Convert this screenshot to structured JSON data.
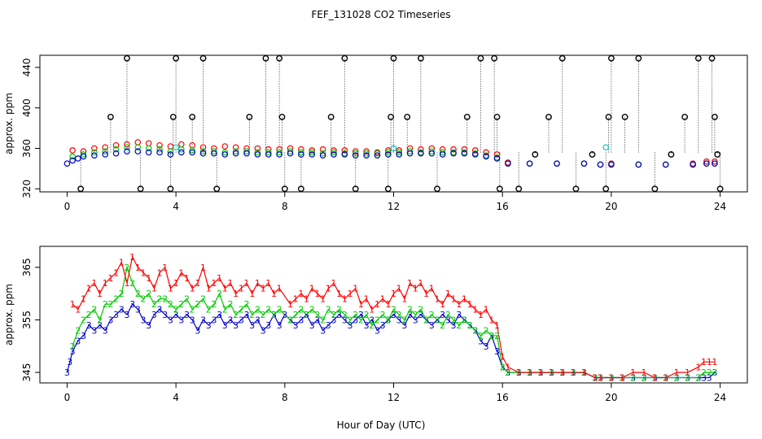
{
  "title": "FEF_131028  CO2 Timeseries",
  "xlabel": "Hour of Day (UTC)",
  "colors": {
    "series1": "#ff0000",
    "series2": "#00cc00",
    "series3": "#0000cc",
    "flag": "#00cccc",
    "axis": "#000000"
  },
  "chart_data": [
    {
      "type": "scatter",
      "title": "FEF_131028  CO2 Timeseries",
      "ylabel": "approx. ppm",
      "xlim": [
        -1,
        25
      ],
      "ylim": [
        317,
        452
      ],
      "xticks": [
        0,
        4,
        8,
        12,
        16,
        20,
        24
      ],
      "yticks": [
        320,
        360,
        400,
        440
      ],
      "grid": false,
      "series": [
        {
          "color": "#ff0000",
          "x": [
            0.2,
            0.6,
            1.0,
            1.4,
            1.8,
            2.2,
            2.6,
            3.0,
            3.4,
            3.8,
            4.2,
            4.6,
            5.0,
            5.4,
            5.8,
            6.2,
            6.6,
            7.0,
            7.4,
            7.8,
            8.2,
            8.6,
            9.0,
            9.4,
            9.8,
            10.2,
            10.6,
            11.0,
            11.4,
            11.8,
            12.2,
            12.6,
            13.0,
            13.4,
            13.8,
            14.2,
            14.6,
            15.0,
            15.4,
            15.8,
            16.2,
            17.0,
            18.0,
            19.0,
            19.6,
            20.0,
            21.0,
            22.0,
            23.0,
            23.5,
            23.8
          ],
          "y": [
            358,
            357,
            360,
            361,
            363,
            364,
            366,
            365,
            363,
            362,
            364,
            363,
            361,
            360,
            362,
            361,
            360,
            360,
            359,
            359,
            360,
            359,
            358,
            359,
            358,
            358,
            357,
            357,
            356,
            358,
            358,
            360,
            359,
            360,
            359,
            359,
            359,
            358,
            356,
            354,
            346,
            345,
            345,
            345,
            344,
            345,
            344,
            344,
            345,
            347,
            347
          ]
        },
        {
          "color": "#00cc00",
          "x": [
            0.2,
            0.6,
            1.0,
            1.4,
            1.8,
            2.2,
            2.6,
            3.0,
            3.4,
            3.8,
            4.2,
            4.6,
            5.0,
            5.4,
            5.8,
            6.2,
            6.6,
            7.0,
            7.4,
            7.8,
            8.2,
            8.6,
            9.0,
            9.4,
            9.8,
            10.2,
            10.6,
            11.0,
            11.4,
            11.8,
            12.2,
            12.6,
            13.0,
            13.4,
            13.8,
            14.2,
            14.6,
            15.0,
            15.4,
            15.8,
            16.2,
            17.0,
            18.0,
            19.0,
            19.6,
            20.0,
            21.0,
            22.0,
            23.0,
            23.5,
            23.8
          ],
          "y": [
            352,
            354,
            356,
            357,
            359,
            361,
            361,
            360,
            359,
            357,
            359,
            358,
            357,
            357,
            356,
            357,
            357,
            356,
            356,
            356,
            357,
            356,
            356,
            355,
            356,
            355,
            355,
            355,
            355,
            356,
            356,
            357,
            356,
            357,
            356,
            356,
            356,
            355,
            353,
            351,
            345,
            345,
            345,
            345,
            344,
            344,
            344,
            344,
            344,
            345,
            345
          ]
        },
        {
          "color": "#0000cc",
          "x": [
            0.0,
            0.2,
            0.4,
            0.6,
            1.0,
            1.4,
            1.8,
            2.2,
            2.6,
            3.0,
            3.4,
            3.8,
            4.2,
            4.6,
            5.0,
            5.4,
            5.8,
            6.2,
            6.6,
            7.0,
            7.4,
            7.8,
            8.2,
            8.6,
            9.0,
            9.4,
            9.8,
            10.2,
            10.6,
            11.0,
            11.4,
            11.8,
            12.2,
            12.6,
            13.0,
            13.4,
            13.8,
            14.2,
            14.6,
            15.0,
            15.4,
            15.8,
            16.2,
            17.0,
            18.0,
            19.0,
            19.6,
            20.0,
            21.0,
            22.0,
            23.0,
            23.5,
            23.8
          ],
          "y": [
            345,
            348,
            350,
            352,
            353,
            354,
            355,
            357,
            357,
            356,
            356,
            354,
            356,
            356,
            355,
            355,
            354,
            355,
            355,
            354,
            354,
            354,
            355,
            354,
            354,
            353,
            354,
            354,
            353,
            353,
            353,
            354,
            354,
            355,
            355,
            355,
            354,
            355,
            355,
            354,
            352,
            350,
            345,
            345,
            345,
            345,
            344,
            344,
            344,
            344,
            344,
            345,
            345
          ]
        }
      ],
      "flag_points": {
        "color": "#00cccc",
        "x": [
          4.0,
          12.0,
          19.8
        ],
        "y": [
          361,
          360,
          361
        ]
      },
      "outliers": {
        "color": "#000000",
        "x": [
          0.5,
          1.6,
          2.2,
          2.7,
          3.8,
          3.9,
          4.0,
          4.6,
          5.0,
          5.5,
          6.7,
          7.3,
          7.8,
          7.9,
          8.0,
          8.6,
          9.7,
          10.2,
          10.6,
          11.8,
          11.9,
          12.0,
          12.5,
          13.0,
          13.6,
          14.7,
          15.2,
          15.7,
          15.8,
          15.9,
          16.6,
          17.2,
          17.7,
          18.2,
          18.7,
          19.3,
          19.8,
          19.9,
          20.0,
          20.5,
          21.0,
          21.6,
          22.2,
          22.7,
          23.2,
          23.7,
          23.8,
          23.9,
          24.0
        ],
        "y": [
          320,
          391,
          449,
          320,
          320,
          391,
          449,
          391,
          449,
          320,
          391,
          449,
          449,
          391,
          320,
          320,
          391,
          449,
          320,
          320,
          391,
          449,
          391,
          449,
          320,
          391,
          449,
          449,
          391,
          320,
          320,
          354,
          391,
          449,
          320,
          354,
          320,
          391,
          449,
          391,
          449,
          320,
          354,
          391,
          449,
          449,
          391,
          354,
          320
        ]
      }
    },
    {
      "type": "scatter",
      "ylabel": "approx. ppm",
      "xlim": [
        -1,
        25
      ],
      "ylim": [
        343,
        369
      ],
      "xticks": [
        0,
        4,
        8,
        12,
        16,
        20,
        24
      ],
      "yticks": [
        345,
        355,
        365
      ],
      "grid": false,
      "markers": [
        "1",
        "2",
        "3"
      ],
      "series": [
        {
          "color": "#ff0000",
          "marker": "1",
          "x": [
            0.2,
            0.4,
            0.6,
            0.8,
            1.0,
            1.2,
            1.4,
            1.6,
            1.8,
            2.0,
            2.2,
            2.4,
            2.6,
            2.8,
            3.0,
            3.2,
            3.4,
            3.6,
            3.8,
            4.0,
            4.2,
            4.4,
            4.6,
            4.8,
            5.0,
            5.2,
            5.4,
            5.6,
            5.8,
            6.0,
            6.2,
            6.4,
            6.6,
            6.8,
            7.0,
            7.2,
            7.4,
            7.6,
            7.8,
            8.2,
            8.4,
            8.6,
            8.8,
            9.0,
            9.2,
            9.4,
            9.6,
            9.8,
            10.0,
            10.2,
            10.4,
            10.6,
            10.8,
            11.0,
            11.2,
            11.4,
            11.6,
            11.8,
            12.0,
            12.2,
            12.4,
            12.6,
            12.8,
            13.0,
            13.2,
            13.4,
            13.6,
            13.8,
            14.0,
            14.2,
            14.4,
            14.6,
            14.8,
            15.0,
            15.2,
            15.4,
            15.6,
            15.8,
            16.0,
            16.2,
            16.6,
            17.0,
            17.4,
            17.8,
            18.2,
            18.6,
            19.0,
            19.4,
            19.6,
            20.0,
            20.4,
            20.8,
            21.2,
            21.6,
            22.0,
            22.4,
            22.8,
            23.2,
            23.4,
            23.6,
            23.8
          ],
          "y": [
            358,
            357,
            359,
            361,
            362,
            360,
            362,
            363,
            364,
            366,
            362,
            367,
            365,
            364,
            363,
            361,
            364,
            365,
            361,
            362,
            364,
            363,
            361,
            362,
            365,
            361,
            362,
            363,
            361,
            362,
            360,
            361,
            362,
            360,
            362,
            361,
            362,
            360,
            361,
            358,
            359,
            360,
            359,
            361,
            360,
            359,
            361,
            362,
            360,
            359,
            360,
            361,
            358,
            359,
            357,
            358,
            359,
            358,
            360,
            361,
            359,
            362,
            361,
            362,
            360,
            361,
            359,
            358,
            360,
            359,
            358,
            359,
            358,
            357,
            356,
            357,
            355,
            354,
            348,
            346,
            345,
            345,
            345,
            345,
            345,
            345,
            345,
            344,
            344,
            344,
            344,
            345,
            345,
            344,
            344,
            345,
            345,
            346,
            347,
            347,
            347
          ]
        },
        {
          "color": "#00cc00",
          "marker": "2",
          "x": [
            0.2,
            0.4,
            0.6,
            0.8,
            1.0,
            1.2,
            1.4,
            1.6,
            1.8,
            2.0,
            2.2,
            2.4,
            2.6,
            2.8,
            3.0,
            3.2,
            3.4,
            3.6,
            3.8,
            4.0,
            4.2,
            4.4,
            4.6,
            4.8,
            5.0,
            5.2,
            5.4,
            5.6,
            5.8,
            6.0,
            6.2,
            6.4,
            6.6,
            6.8,
            7.0,
            7.2,
            7.4,
            7.6,
            7.8,
            8.2,
            8.4,
            8.6,
            8.8,
            9.0,
            9.2,
            9.4,
            9.6,
            9.8,
            10.0,
            10.2,
            10.4,
            10.6,
            10.8,
            11.0,
            11.2,
            11.4,
            11.6,
            11.8,
            12.0,
            12.2,
            12.4,
            12.6,
            12.8,
            13.0,
            13.2,
            13.4,
            13.6,
            13.8,
            14.0,
            14.2,
            14.4,
            14.6,
            14.8,
            15.0,
            15.2,
            15.4,
            15.6,
            15.8,
            16.0,
            16.2,
            16.6,
            17.0,
            17.4,
            17.8,
            18.2,
            18.6,
            19.0,
            19.4,
            19.6,
            20.0,
            20.4,
            20.8,
            21.2,
            21.6,
            22.0,
            22.4,
            22.8,
            23.2,
            23.4,
            23.6,
            23.8
          ],
          "y": [
            350,
            353,
            355,
            356,
            357,
            355,
            358,
            358,
            359,
            360,
            365,
            362,
            360,
            359,
            360,
            358,
            359,
            359,
            358,
            357,
            358,
            359,
            357,
            358,
            359,
            357,
            358,
            360,
            357,
            358,
            356,
            357,
            358,
            356,
            357,
            356,
            357,
            356,
            357,
            355,
            356,
            357,
            356,
            357,
            356,
            355,
            357,
            356,
            357,
            356,
            355,
            356,
            355,
            356,
            354,
            355,
            356,
            355,
            357,
            356,
            355,
            357,
            356,
            357,
            355,
            356,
            355,
            354,
            356,
            355,
            354,
            355,
            354,
            353,
            352,
            353,
            352,
            352,
            346,
            345,
            345,
            345,
            345,
            345,
            345,
            345,
            345,
            344,
            344,
            344,
            344,
            344,
            344,
            344,
            344,
            344,
            344,
            344,
            345,
            345,
            345
          ]
        },
        {
          "color": "#0000cc",
          "marker": "3",
          "x": [
            0.0,
            0.1,
            0.2,
            0.4,
            0.6,
            0.8,
            1.0,
            1.2,
            1.4,
            1.6,
            1.8,
            2.0,
            2.2,
            2.4,
            2.6,
            2.8,
            3.0,
            3.2,
            3.4,
            3.6,
            3.8,
            4.0,
            4.2,
            4.4,
            4.6,
            4.8,
            5.0,
            5.2,
            5.4,
            5.6,
            5.8,
            6.0,
            6.2,
            6.4,
            6.6,
            6.8,
            7.0,
            7.2,
            7.4,
            7.6,
            7.8,
            8.0,
            8.2,
            8.4,
            8.6,
            8.8,
            9.0,
            9.2,
            9.4,
            9.6,
            9.8,
            10.0,
            10.2,
            10.4,
            10.6,
            10.8,
            11.0,
            11.2,
            11.4,
            11.6,
            11.8,
            12.0,
            12.2,
            12.4,
            12.6,
            12.8,
            13.0,
            13.2,
            13.4,
            13.6,
            13.8,
            14.0,
            14.2,
            14.4,
            14.6,
            14.8,
            15.0,
            15.2,
            15.4,
            15.6,
            15.8,
            16.0,
            16.2,
            16.6,
            17.0,
            17.4,
            17.8,
            18.2,
            18.6,
            19.0,
            19.4,
            19.6,
            20.0,
            20.4,
            20.8,
            21.2,
            21.6,
            22.0,
            22.4,
            22.8,
            23.2,
            23.4,
            23.6,
            23.8
          ],
          "y": [
            345,
            347,
            349,
            351,
            352,
            354,
            353,
            354,
            353,
            355,
            356,
            357,
            356,
            358,
            357,
            355,
            354,
            356,
            357,
            356,
            355,
            356,
            355,
            356,
            355,
            353,
            355,
            354,
            355,
            356,
            354,
            355,
            354,
            355,
            356,
            354,
            355,
            353,
            354,
            356,
            354,
            356,
            355,
            354,
            355,
            356,
            354,
            355,
            353,
            354,
            355,
            356,
            355,
            354,
            355,
            356,
            354,
            355,
            353,
            354,
            355,
            356,
            355,
            354,
            356,
            355,
            356,
            355,
            354,
            355,
            356,
            355,
            354,
            356,
            355,
            354,
            353,
            351,
            350,
            352,
            349,
            346,
            345,
            345,
            345,
            345,
            345,
            345,
            345,
            345,
            344,
            344,
            344,
            344,
            344,
            344,
            344,
            344,
            344,
            344,
            344,
            344,
            344,
            345
          ]
        }
      ]
    }
  ]
}
